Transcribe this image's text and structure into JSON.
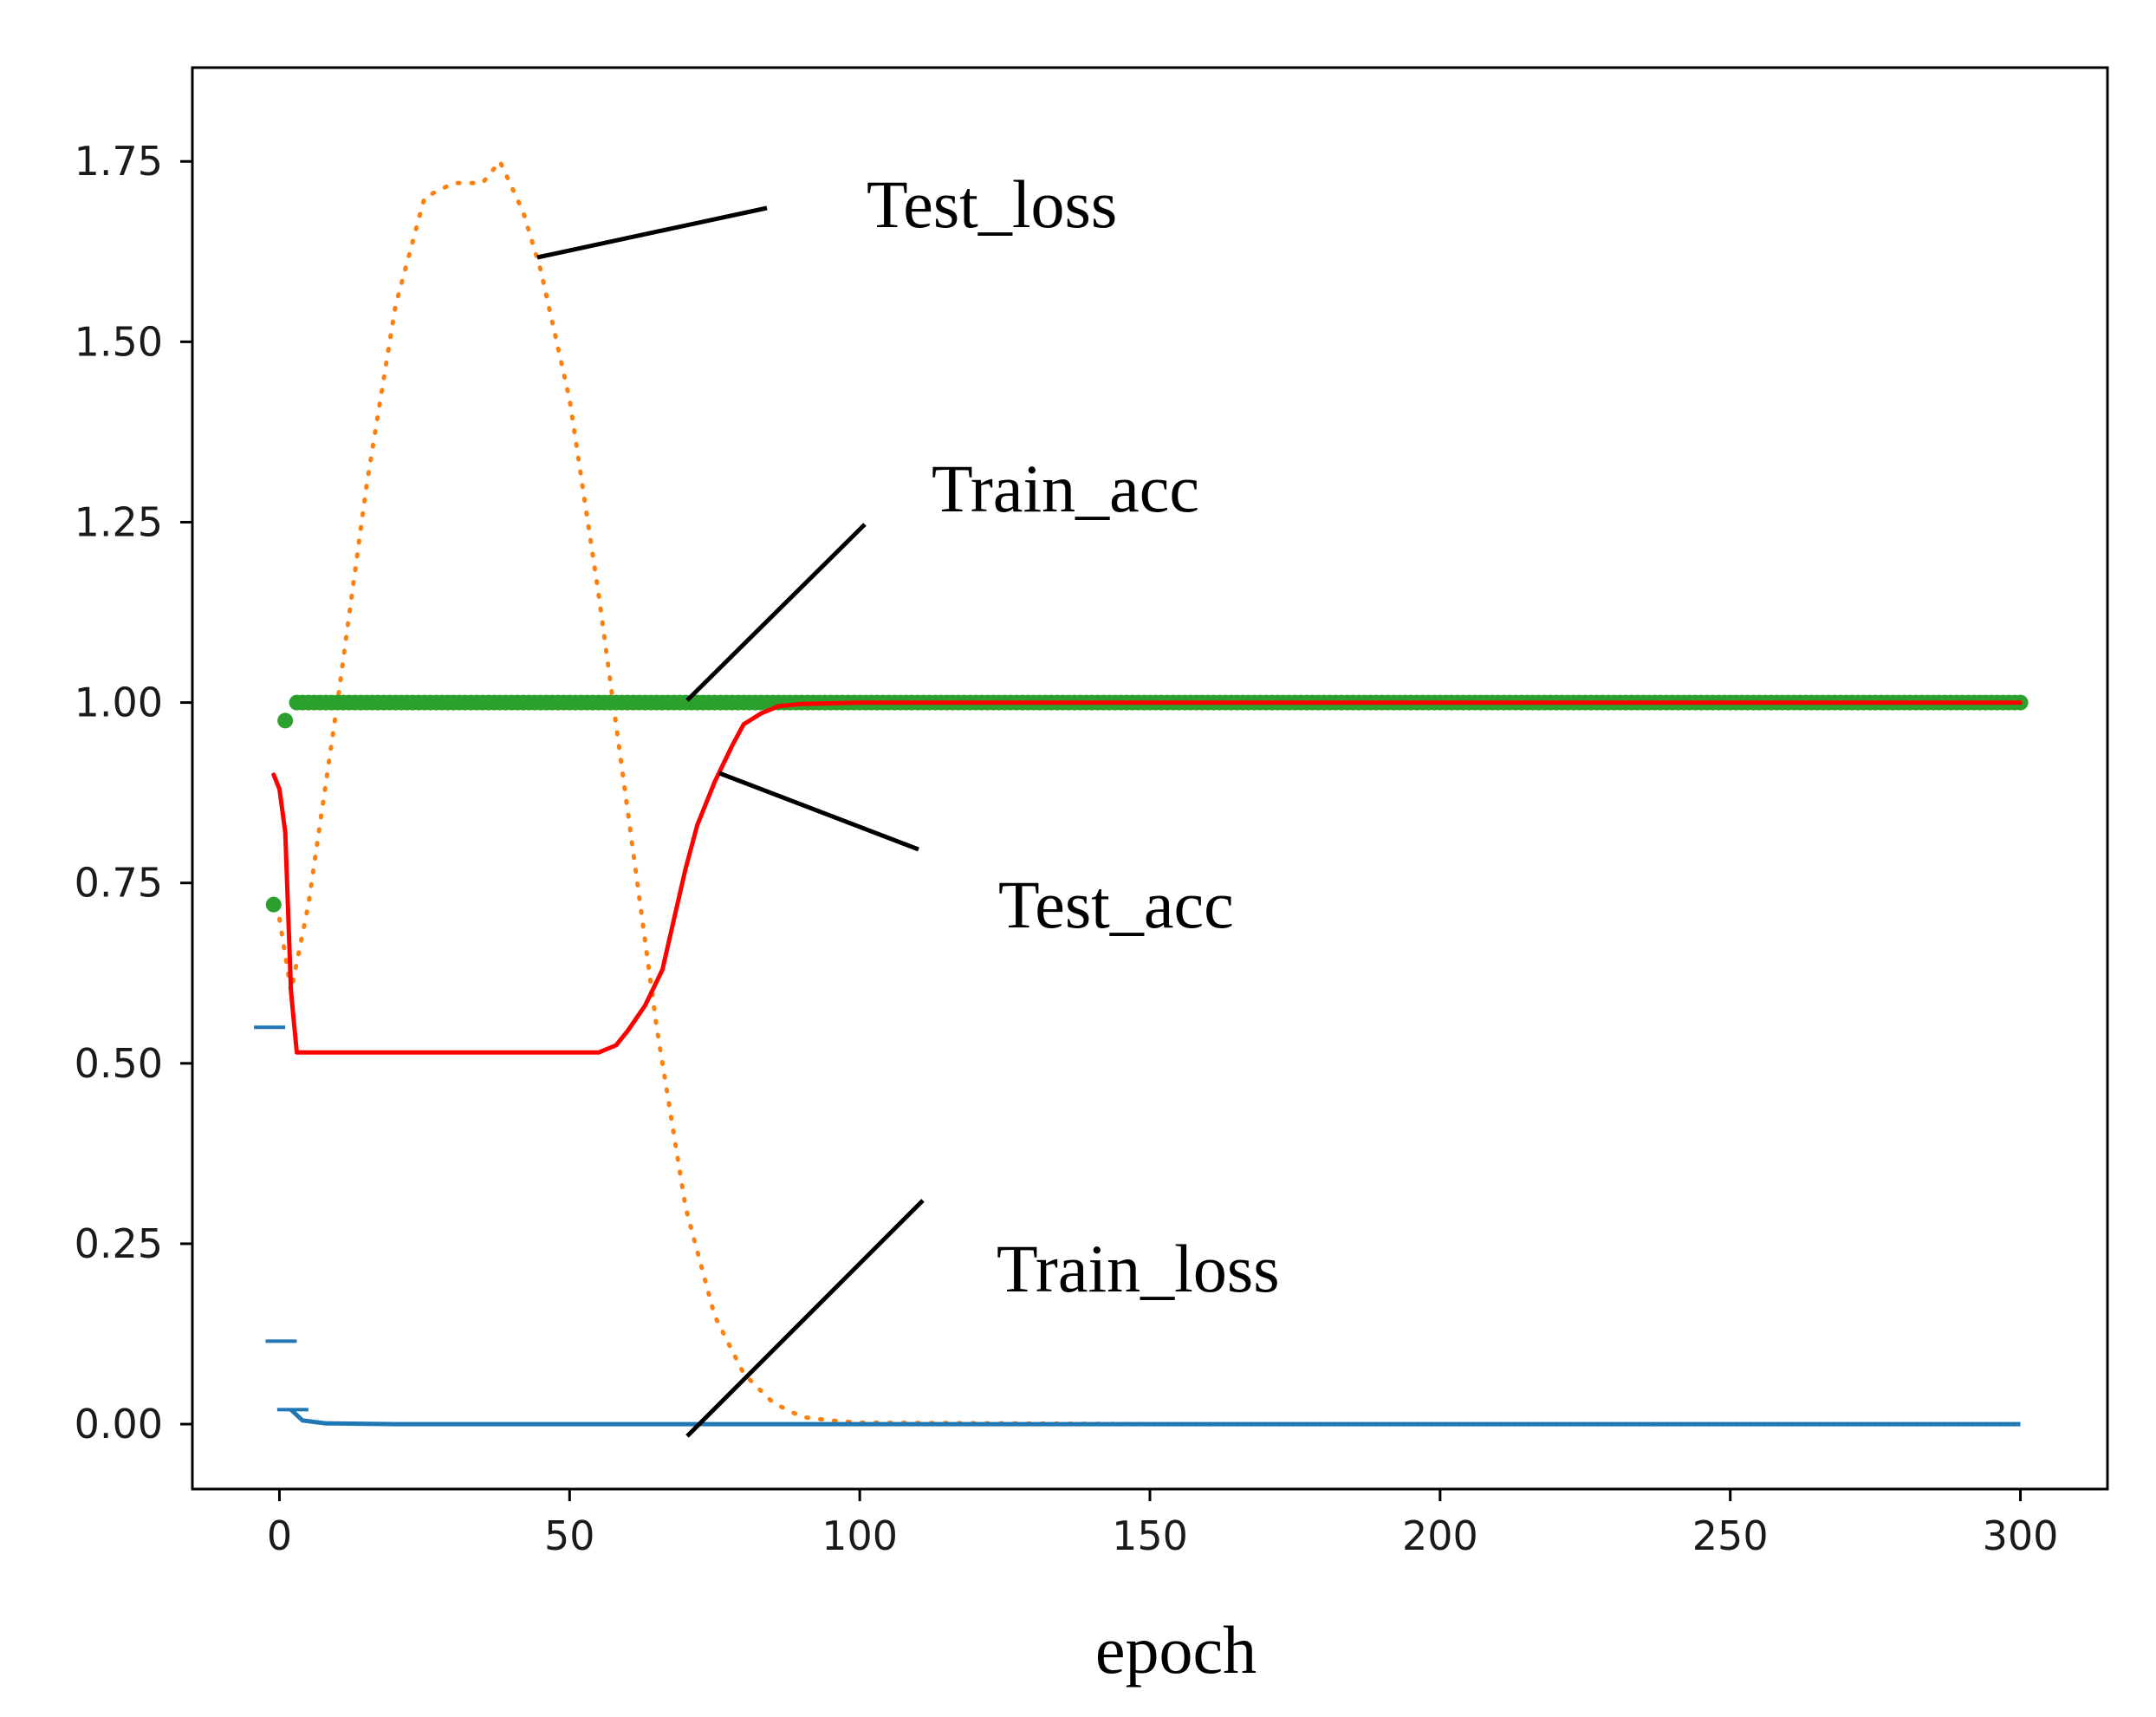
{
  "chart_data": {
    "type": "line",
    "xlabel": "epoch",
    "ylabel": "",
    "xlim": [
      -15,
      315
    ],
    "ylim": [
      -0.09,
      1.88
    ],
    "xticks": [
      0,
      50,
      100,
      150,
      200,
      250,
      300
    ],
    "xtick_labels": [
      "0",
      "50",
      "100",
      "150",
      "200",
      "250",
      "300"
    ],
    "yticks": [
      0.0,
      0.25,
      0.5,
      0.75,
      1.0,
      1.25,
      1.5,
      1.75
    ],
    "ytick_labels": [
      "0.00",
      "0.25",
      "0.50",
      "0.75",
      "1.00",
      "1.25",
      "1.50",
      "1.75"
    ],
    "grid": false,
    "legend": "none",
    "series": [
      {
        "name": "Test_loss",
        "style": "dotted",
        "color": "#ff7f0e",
        "x": [
          0,
          2,
          5,
          10,
          15,
          20,
          25,
          30,
          35,
          38,
          42,
          45,
          50,
          55,
          60,
          65,
          70,
          75,
          80,
          85,
          90,
          95,
          100,
          150,
          200,
          250,
          300
        ],
        "y": [
          0.7,
          0.6,
          0.72,
          1.0,
          1.3,
          1.55,
          1.7,
          1.72,
          1.72,
          1.75,
          1.68,
          1.6,
          1.42,
          1.15,
          0.85,
          0.55,
          0.3,
          0.15,
          0.07,
          0.03,
          0.01,
          0.005,
          0.002,
          0.0,
          0.0,
          0.0,
          0.0
        ]
      },
      {
        "name": "Train_acc",
        "style": "markers",
        "color": "#2ca02c",
        "x": [
          -1,
          1,
          3,
          10,
          20,
          50,
          100,
          150,
          200,
          250,
          300
        ],
        "y": [
          0.72,
          0.975,
          1.0,
          1.0,
          1.0,
          1.0,
          1.0,
          1.0,
          1.0,
          1.0,
          1.0
        ]
      },
      {
        "name": "Test_acc",
        "style": "solid",
        "color": "#ff0000",
        "x": [
          -1,
          0,
          1,
          2,
          3,
          5,
          10,
          20,
          30,
          40,
          50,
          55,
          58,
          60,
          63,
          66,
          68,
          70,
          72,
          75,
          78,
          80,
          83,
          86,
          90,
          100,
          150,
          200,
          250,
          300
        ],
        "y": [
          0.9,
          0.88,
          0.82,
          0.6,
          0.515,
          0.515,
          0.515,
          0.515,
          0.515,
          0.515,
          0.515,
          0.515,
          0.525,
          0.545,
          0.58,
          0.63,
          0.7,
          0.77,
          0.83,
          0.89,
          0.94,
          0.97,
          0.985,
          0.995,
          0.998,
          1.0,
          1.0,
          1.0,
          1.0,
          1.0
        ]
      },
      {
        "name": "Train_loss",
        "style": "dashed",
        "color": "#1f77b4",
        "x": [
          -2,
          0,
          2,
          4,
          8,
          20,
          50,
          100,
          150,
          200,
          250,
          300
        ],
        "y": [
          0.55,
          0.115,
          0.02,
          0.005,
          0.001,
          0.0,
          0.0,
          0.0,
          0.0,
          0.0,
          0.0,
          0.0
        ]
      }
    ],
    "annotations": [
      {
        "text": "Test_loss",
        "target": [
          45,
          1.6
        ]
      },
      {
        "text": "Train_acc",
        "target": [
          70,
          0.99
        ]
      },
      {
        "text": "Test_acc",
        "target": [
          75,
          0.9
        ]
      },
      {
        "text": "Train_loss",
        "target": [
          70,
          -0.01
        ]
      }
    ]
  }
}
